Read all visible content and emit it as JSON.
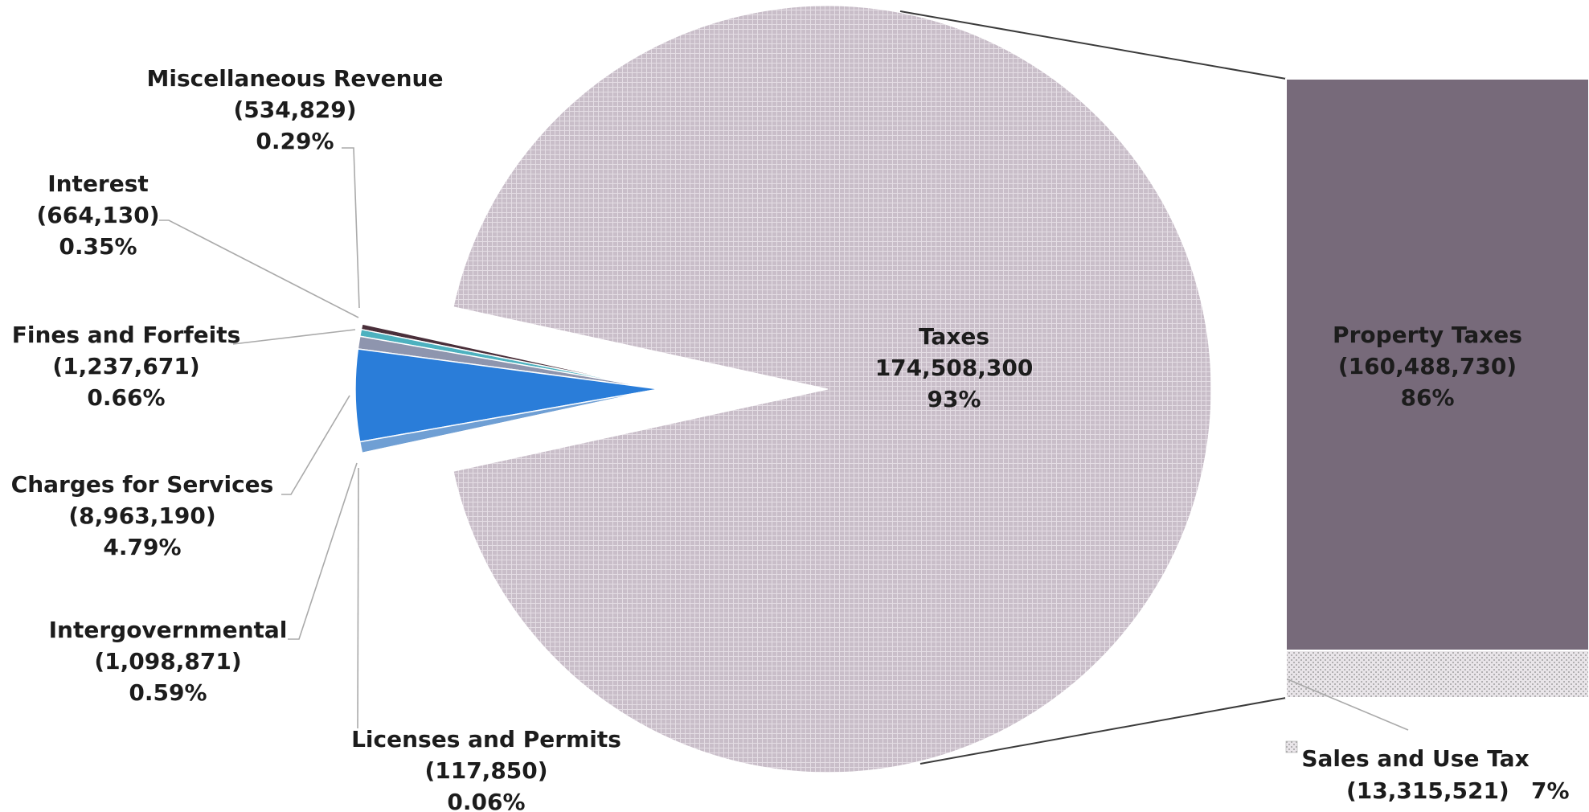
{
  "chart_data": {
    "type": "pie",
    "subtype": "bar-of-pie",
    "slices": [
      {
        "name": "Taxes",
        "value": 174508300,
        "value_text": "174,508,300",
        "percent_text": "93%",
        "color": "#c9bec9",
        "pattern": "grid"
      },
      {
        "name": "Licenses and Permits",
        "value": 117850,
        "value_text": "(117,850)",
        "percent_text": "0.06%",
        "color": "#2e4470"
      },
      {
        "name": "Intergovernmental",
        "value": 1098871,
        "value_text": "(1,098,871)",
        "percent_text": "0.59%",
        "color": "#6f9fd4"
      },
      {
        "name": "Charges for Services",
        "value": 8963190,
        "value_text": "(8,963,190)",
        "percent_text": "4.79%",
        "color": "#2a7dd9"
      },
      {
        "name": "Fines and Forfeits",
        "value": 1237671,
        "value_text": "(1,237,671)",
        "percent_text": "0.66%",
        "color": "#8e95ae"
      },
      {
        "name": "Interest",
        "value": 664130,
        "value_text": "(664,130)",
        "percent_text": "0.35%",
        "color": "#4db1bf"
      },
      {
        "name": "Miscellaneous Revenue",
        "value": 534829,
        "value_text": "(534,829)",
        "percent_text": "0.29%",
        "color": "#4a2f3a"
      }
    ],
    "breakout": [
      {
        "name": "Property Taxes",
        "value": 160488730,
        "value_text": "(160,488,730)",
        "percent_text": "86%",
        "color": "#776a7a"
      },
      {
        "name": "Sales and Use Tax",
        "value": 13315521,
        "value_text": "(13,315,521)",
        "percent_text": "7%",
        "color": "#e6e2e6",
        "pattern": "dots"
      }
    ],
    "legend": {
      "position": "bottom-right",
      "entries": [
        "Sales and Use Tax"
      ]
    }
  }
}
